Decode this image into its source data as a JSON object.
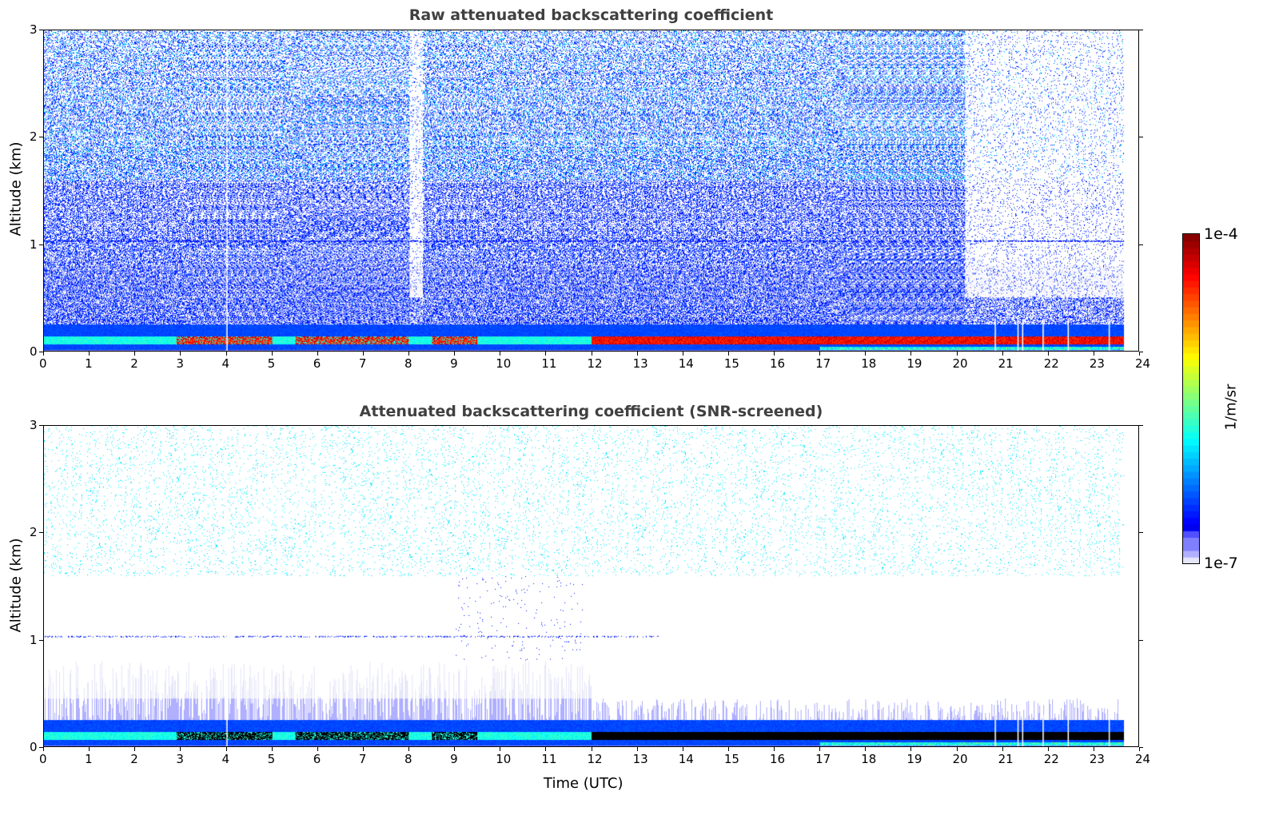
{
  "chart_data": [
    {
      "type": "heatmap",
      "title": "Raw attenuated backscattering coefficient",
      "xlabel": "",
      "ylabel": "Altitude (km)",
      "xlim": [
        0,
        24
      ],
      "ylim": [
        0,
        3
      ],
      "xticks": [
        "0",
        "1",
        "2",
        "3",
        "4",
        "5",
        "6",
        "7",
        "8",
        "9",
        "10",
        "11",
        "12",
        "13",
        "14",
        "15",
        "16",
        "17",
        "18",
        "19",
        "20",
        "21",
        "22",
        "23",
        "24"
      ],
      "yticks": [
        "0",
        "1",
        "2",
        "3"
      ],
      "screened": false,
      "features": {
        "boundary_layer_top_km": 0.25,
        "aerosol_layer_km": 0.1,
        "strong_layer_start_utc": 12,
        "data_end_utc": 23.7,
        "artifact_line_km": 1.03
      }
    },
    {
      "type": "heatmap",
      "title": "Attenuated backscattering coefficient (SNR-screened)",
      "xlabel": "Time (UTC)",
      "ylabel": "Altitude (km)",
      "xlim": [
        0,
        24
      ],
      "ylim": [
        0,
        3
      ],
      "xticks": [
        "0",
        "1",
        "2",
        "3",
        "4",
        "5",
        "6",
        "7",
        "8",
        "9",
        "10",
        "11",
        "12",
        "13",
        "14",
        "15",
        "16",
        "17",
        "18",
        "19",
        "20",
        "21",
        "22",
        "23",
        "24"
      ],
      "yticks": [
        "0",
        "1",
        "2",
        "3"
      ],
      "screened": true,
      "features": {
        "boundary_layer_top_km": 0.25,
        "aerosol_layer_km": 0.1,
        "strong_layer_start_utc": 12,
        "data_end_utc": 23.7,
        "artifact_line_km": 1.03
      }
    }
  ],
  "colorbar": {
    "label": "1/m/sr",
    "min_label": "1e-7",
    "max_label": "1e-4",
    "colormap": "jet",
    "low_colors": [
      "#e6e6fa",
      "#b0b0ff",
      "#8080ff",
      "#5050ff"
    ]
  }
}
